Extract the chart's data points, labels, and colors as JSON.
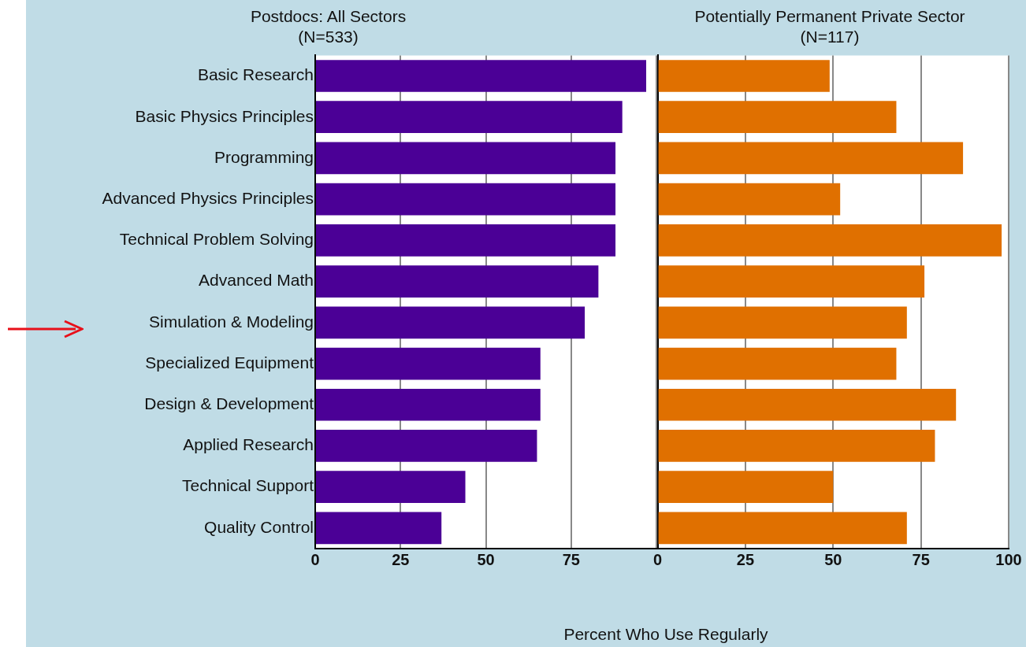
{
  "chart_data": [
    {
      "type": "bar",
      "orientation": "horizontal",
      "title": "Postdocs: All Sectors\n(N=533)",
      "xlabel": "Percent Who Use Regularly",
      "categories": [
        "Basic Research",
        "Basic Physics Principles",
        "Programming",
        "Advanced Physics Principles",
        "Technical Problem Solving",
        "Advanced Math",
        "Simulation & Modeling",
        "Specialized Equipment",
        "Design & Development",
        "Applied Research",
        "Technical Support",
        "Quality Control"
      ],
      "values": [
        97,
        90,
        88,
        88,
        88,
        83,
        79,
        66,
        66,
        65,
        44,
        37
      ],
      "color": "#4b0096",
      "xlim": [
        0,
        100
      ],
      "xticks": [
        0,
        25,
        50,
        75,
        {
          "value": 100,
          "label": null
        }
      ],
      "grid": "x"
    },
    {
      "type": "bar",
      "orientation": "horizontal",
      "title": "Potentially Permanent Private Sector\n(N=117)",
      "values": [
        49,
        68,
        87,
        52,
        98,
        76,
        71,
        68,
        85,
        79,
        50,
        71
      ],
      "color": "#e07000",
      "categories": [
        null,
        null,
        null,
        null,
        null,
        null,
        null,
        null,
        null,
        null,
        null,
        null
      ],
      "xlim": [
        0,
        100
      ],
      "xticks": [
        0,
        25,
        50,
        75,
        100
      ],
      "grid": "x",
      "tick_labels": "x"
    }
  ]
}
